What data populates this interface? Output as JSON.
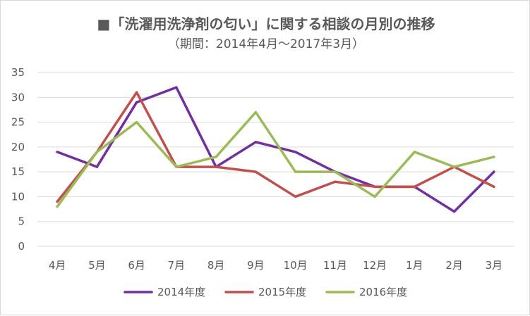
{
  "chart_data": {
    "type": "line",
    "title": "■「洗濯用洗浄剤の匂い」に関する相談の月別の推移",
    "subtitle": "（期間：2014年4月～2017年3月）",
    "xlabel": "",
    "ylabel": "",
    "categories": [
      "4月",
      "5月",
      "6月",
      "7月",
      "8月",
      "9月",
      "10月",
      "11月",
      "12月",
      "1月",
      "2月",
      "3月"
    ],
    "ylim": [
      0,
      35
    ],
    "yticks": [
      0,
      5,
      10,
      15,
      20,
      25,
      30,
      35
    ],
    "grid": true,
    "legend_position": "bottom",
    "series": [
      {
        "name": "2014年度",
        "color": "#7030a0",
        "values": [
          19,
          16,
          29,
          32,
          16,
          21,
          19,
          15,
          12,
          12,
          7,
          15
        ]
      },
      {
        "name": "2015年度",
        "color": "#c0504d",
        "values": [
          9,
          19,
          31,
          16,
          16,
          15,
          10,
          13,
          12,
          12,
          16,
          12
        ]
      },
      {
        "name": "2016年度",
        "color": "#9bbb59",
        "values": [
          8,
          19,
          25,
          16,
          18,
          27,
          15,
          15,
          10,
          19,
          16,
          18
        ]
      }
    ]
  }
}
